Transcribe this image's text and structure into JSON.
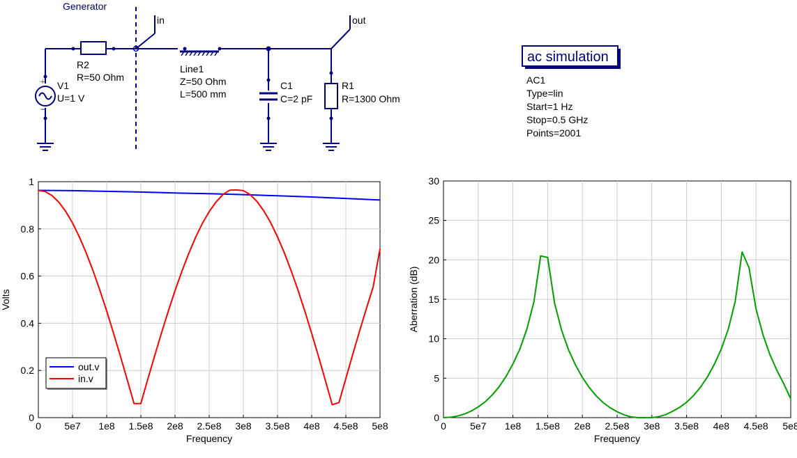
{
  "schematic": {
    "generator_label": "Generator",
    "port_in_label": "in",
    "port_out_label": "out",
    "v1": {
      "name": "V1",
      "value": "U=1 V"
    },
    "r2": {
      "name": "R2",
      "value": "R=50 Ohm"
    },
    "line1": {
      "name": "Line1",
      "z": "Z=50 Ohm",
      "l": "L=500 mm"
    },
    "c1": {
      "name": "C1",
      "value": "C=2 pF"
    },
    "r1": {
      "name": "R1",
      "value": "R=1300 Ohm"
    },
    "sim": {
      "box_label": "ac simulation",
      "name": "AC1",
      "type": "Type=lin",
      "start": "Start=1 Hz",
      "stop": "Stop=0.5 GHz",
      "points": "Points=2001"
    },
    "colors": {
      "wire": "#00007f",
      "port": "#00007f"
    }
  },
  "chart_data": [
    {
      "type": "line",
      "xlabel": "Frequency",
      "ylabel": "Volts",
      "xlim": [
        0,
        500000000
      ],
      "ylim": [
        0,
        1
      ],
      "x_ticks": [
        "0",
        "5e7",
        "1e8",
        "1.5e8",
        "2e8",
        "2.5e8",
        "3e8",
        "3.5e8",
        "4e8",
        "4.5e8",
        "5e8"
      ],
      "y_ticks": [
        "0",
        "0.2",
        "0.4",
        "0.6",
        "0.8",
        "1"
      ],
      "grid": true,
      "legend": "bottom-left",
      "series": [
        {
          "name": "out.v",
          "color": "#0000ff",
          "x": [
            0,
            50000000,
            100000000,
            150000000,
            200000000,
            250000000,
            300000000,
            350000000,
            400000000,
            450000000,
            500000000
          ],
          "y": [
            0.963,
            0.962,
            0.959,
            0.956,
            0.952,
            0.949,
            0.945,
            0.94,
            0.935,
            0.929,
            0.922
          ]
        },
        {
          "name": "in.v",
          "color": "#ff0000",
          "x": [
            0,
            10000000,
            20000000,
            30000000,
            40000000,
            50000000,
            60000000,
            70000000,
            80000000,
            90000000,
            100000000,
            110000000,
            120000000,
            130000000,
            140000000,
            150000000,
            160000000,
            170000000,
            180000000,
            190000000,
            200000000,
            210000000,
            220000000,
            230000000,
            240000000,
            250000000,
            260000000,
            270000000,
            280000000,
            290000000,
            300000000,
            310000000,
            320000000,
            330000000,
            340000000,
            350000000,
            360000000,
            370000000,
            380000000,
            390000000,
            400000000,
            410000000,
            420000000,
            430000000,
            440000000,
            450000000,
            460000000,
            470000000,
            480000000,
            490000000,
            500000000
          ],
          "y": [
            0.963,
            0.958,
            0.941,
            0.913,
            0.874,
            0.825,
            0.766,
            0.698,
            0.623,
            0.54,
            0.452,
            0.358,
            0.261,
            0.161,
            0.06,
            0.06,
            0.161,
            0.26,
            0.357,
            0.45,
            0.538,
            0.62,
            0.695,
            0.763,
            0.823,
            0.873,
            0.914,
            0.945,
            0.964,
            0.965,
            0.962,
            0.945,
            0.916,
            0.876,
            0.826,
            0.766,
            0.698,
            0.622,
            0.54,
            0.451,
            0.357,
            0.259,
            0.158,
            0.055,
            0.064,
            0.166,
            0.267,
            0.366,
            0.462,
            0.554,
            0.716
          ]
        }
      ]
    },
    {
      "type": "line",
      "xlabel": "Frequency",
      "ylabel": "Aberration (dB)",
      "xlim": [
        0,
        500000000
      ],
      "ylim": [
        0,
        30
      ],
      "x_ticks": [
        "0",
        "5e7",
        "1e8",
        "1.5e8",
        "2e8",
        "2.5e8",
        "3e8",
        "3.5e8",
        "4e8",
        "4.5e8",
        "5e8"
      ],
      "y_ticks": [
        "0",
        "5",
        "10",
        "15",
        "20",
        "25",
        "30"
      ],
      "grid": true,
      "series": [
        {
          "color": "#00a000",
          "x": [
            0,
            10000000,
            20000000,
            30000000,
            40000000,
            50000000,
            60000000,
            70000000,
            80000000,
            90000000,
            100000000,
            110000000,
            120000000,
            130000000,
            140000000,
            150000000,
            160000000,
            170000000,
            180000000,
            190000000,
            200000000,
            210000000,
            220000000,
            230000000,
            240000000,
            250000000,
            260000000,
            270000000,
            280000000,
            290000000,
            300000000,
            310000000,
            320000000,
            330000000,
            340000000,
            350000000,
            360000000,
            370000000,
            380000000,
            390000000,
            400000000,
            410000000,
            420000000,
            430000000,
            440000000,
            450000000,
            460000000,
            470000000,
            480000000,
            490000000,
            500000000
          ],
          "y": [
            0,
            0.05,
            0.2,
            0.45,
            0.84,
            1.35,
            2.0,
            2.85,
            3.9,
            5.2,
            6.8,
            8.7,
            11.2,
            14.6,
            20.5,
            20.3,
            14.5,
            11.1,
            8.6,
            6.7,
            5.1,
            3.8,
            2.75,
            1.9,
            1.25,
            0.75,
            0.35,
            0.1,
            0,
            0,
            0,
            0.12,
            0.38,
            0.8,
            1.3,
            1.95,
            2.8,
            3.85,
            5.15,
            6.75,
            8.7,
            11.2,
            14.7,
            21.0,
            19.0,
            13.8,
            10.5,
            8.0,
            6.0,
            4.3,
            2.4
          ]
        }
      ]
    }
  ]
}
